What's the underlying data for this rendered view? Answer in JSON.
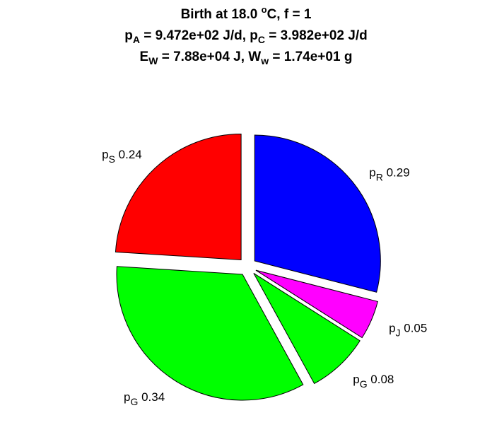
{
  "chart_data": {
    "type": "pie",
    "title": {
      "line1": "Birth at 18.0 °C, f = 1",
      "line1_parts": {
        "pre": "Birth at 18.0 ",
        "sup": "o",
        "post": "C, f = 1"
      },
      "line2_parts": {
        "p": "p",
        "subA": "A",
        "mid": " = 9.472e+02 J/d, p",
        "subC": "C",
        "post": " = 3.982e+02 J/d"
      },
      "line3_parts": {
        "E": "E",
        "subW": "W",
        "mid": " = 7.88e+04 J, W",
        "subw": "w",
        "post": " = 1.74e+01 g"
      }
    },
    "slices": [
      {
        "name": "p_R",
        "base": "p",
        "sub": "R",
        "value": 0.29,
        "label_value": "0.29",
        "color": "#0000ff"
      },
      {
        "name": "p_J",
        "base": "p",
        "sub": "J",
        "value": 0.05,
        "label_value": "0.05",
        "color": "#ff00ff"
      },
      {
        "name": "p_G",
        "base": "p",
        "sub": "G",
        "value": 0.08,
        "label_value": "0.08",
        "color": "#00ff00"
      },
      {
        "name": "p_G",
        "base": "p",
        "sub": "G",
        "value": 0.34,
        "label_value": "0.34",
        "color": "#00ff00"
      },
      {
        "name": "p_S",
        "base": "p",
        "sub": "S",
        "value": 0.24,
        "label_value": "0.24",
        "color": "#ff0000"
      }
    ],
    "start_at": "top",
    "direction": "clockwise",
    "exploded": true,
    "legend": "none"
  }
}
